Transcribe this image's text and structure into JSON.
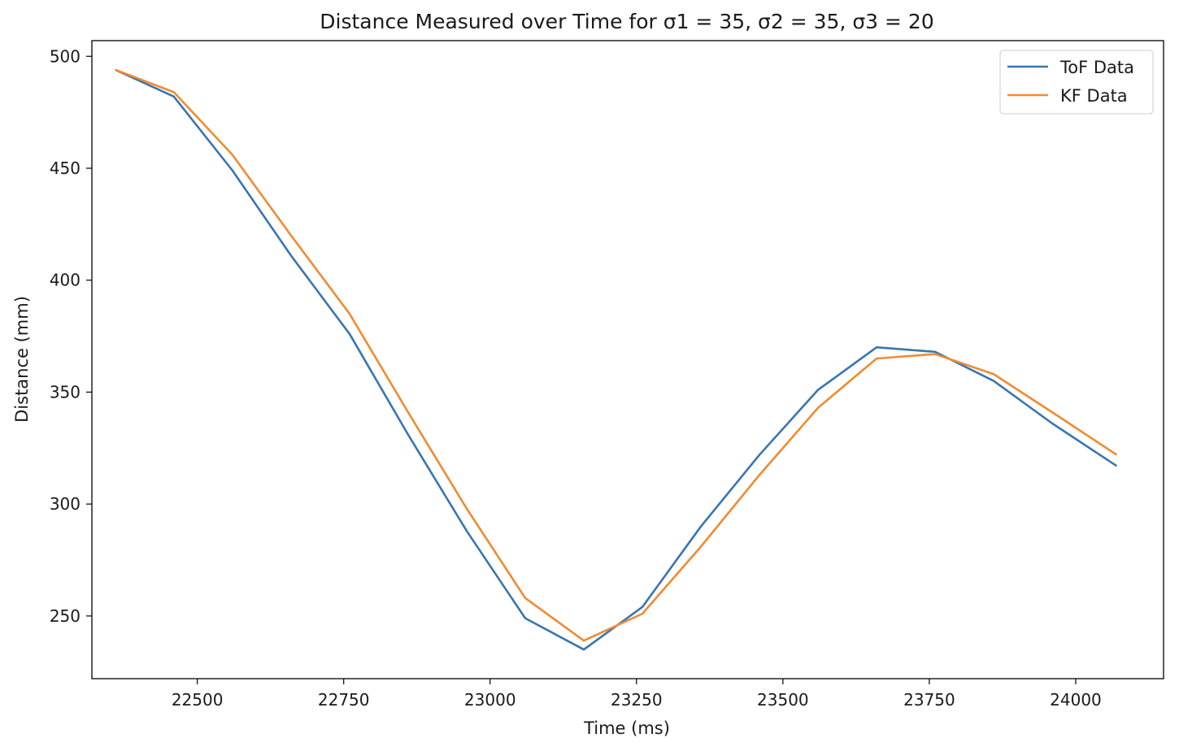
{
  "chart_data": {
    "type": "line",
    "title": "Distance Measured over Time for σ1 = 35, σ2 = 35, σ3 = 20",
    "xlabel": "Time (ms)",
    "ylabel": "Distance (mm)",
    "xlim": [
      22320,
      24150
    ],
    "ylim": [
      222,
      507
    ],
    "xticks": [
      22500,
      22750,
      23000,
      23250,
      23500,
      23750,
      24000
    ],
    "yticks": [
      250,
      300,
      350,
      400,
      450,
      500
    ],
    "grid": false,
    "legend_position": "upper right",
    "series": [
      {
        "name": "ToF Data",
        "color": "#3a75b0",
        "x": [
          22360,
          22460,
          22560,
          22660,
          22760,
          22860,
          22960,
          23060,
          23160,
          23260,
          23360,
          23460,
          23560,
          23660,
          23760,
          23860,
          23960,
          24070
        ],
        "y": [
          494,
          482,
          449,
          411,
          376,
          331,
          288,
          249,
          235,
          254,
          290,
          322,
          351,
          370,
          368,
          355,
          336,
          317
        ]
      },
      {
        "name": "KF Data",
        "color": "#f08b30",
        "x": [
          22360,
          22460,
          22560,
          22660,
          22760,
          22860,
          22960,
          23060,
          23160,
          23260,
          23360,
          23460,
          23560,
          23660,
          23760,
          23860,
          23960,
          24070
        ],
        "y": [
          494,
          484,
          456,
          420,
          385,
          341,
          298,
          258,
          239,
          251,
          281,
          313,
          343,
          365,
          367,
          358,
          341,
          322
        ]
      }
    ]
  }
}
